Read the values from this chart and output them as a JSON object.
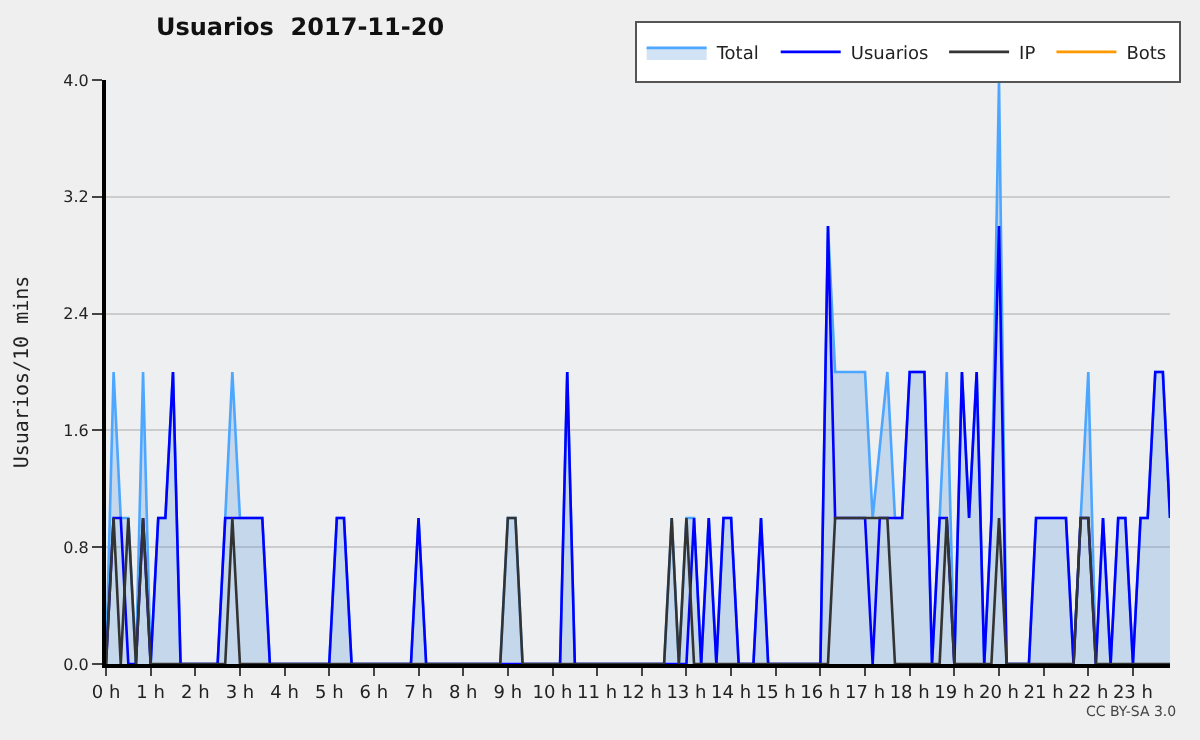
{
  "chart_data": {
    "type": "line",
    "title": "Usuarios  2017-11-20",
    "ylabel": "Usuarios/10 mins",
    "xlim": [
      0,
      23.83
    ],
    "xticks": [
      {
        "value": 0,
        "label": "0 h"
      },
      {
        "value": 1,
        "label": "1 h"
      },
      {
        "value": 2,
        "label": "2 h"
      },
      {
        "value": 3,
        "label": "3 h"
      },
      {
        "value": 4,
        "label": "4 h"
      },
      {
        "value": 5,
        "label": "5 h"
      },
      {
        "value": 6,
        "label": "6 h"
      },
      {
        "value": 7,
        "label": "7 h"
      },
      {
        "value": 8,
        "label": "8 h"
      },
      {
        "value": 9,
        "label": "9 h"
      },
      {
        "value": 10,
        "label": "10 h"
      },
      {
        "value": 11,
        "label": "11 h"
      },
      {
        "value": 12,
        "label": "12 h"
      },
      {
        "value": 13,
        "label": "13 h"
      },
      {
        "value": 14,
        "label": "14 h"
      },
      {
        "value": 15,
        "label": "15 h"
      },
      {
        "value": 16,
        "label": "16 h"
      },
      {
        "value": 17,
        "label": "17 h"
      },
      {
        "value": 18,
        "label": "18 h"
      },
      {
        "value": 19,
        "label": "19 h"
      },
      {
        "value": 20,
        "label": "20 h"
      },
      {
        "value": 21,
        "label": "21 h"
      },
      {
        "value": 22,
        "label": "22 h"
      },
      {
        "value": 23,
        "label": "23 h"
      }
    ],
    "ylim": [
      0,
      4
    ],
    "yticks": [
      {
        "value": 0,
        "label": "0.0"
      },
      0.8,
      1.6,
      2.4,
      3.2,
      {
        "value": 4,
        "label": "4.0"
      }
    ],
    "grid": "y",
    "legend": "top right",
    "marker": "none",
    "line_style": "solid",
    "annotations": [
      "CC BY-SA 3.0"
    ],
    "series": [
      {
        "name": "Total",
        "type": "area",
        "color": "#4da6ff",
        "x": [
          0,
          0.17,
          0.33,
          0.5,
          0.67,
          0.83,
          1,
          1.17,
          1.33,
          1.5,
          1.67,
          2.5,
          2.67,
          2.83,
          3,
          3.5,
          3.67,
          5,
          5.17,
          5.33,
          5.5,
          6.83,
          7,
          7.17,
          8.83,
          9,
          9.17,
          9.33,
          10.17,
          10.33,
          10.5,
          12.5,
          12.67,
          12.83,
          13,
          13.17,
          13.33,
          13.5,
          13.67,
          13.83,
          14,
          14.17,
          14.5,
          14.67,
          14.83,
          16,
          16.17,
          16.33,
          17,
          17.17,
          17.5,
          17.67,
          17.83,
          18,
          18.33,
          18.5,
          18.67,
          18.83,
          19,
          19.17,
          19.33,
          19.5,
          19.67,
          19.83,
          20,
          20.17,
          20.67,
          20.83,
          21.5,
          21.67,
          21.83,
          22,
          22.17,
          22.33,
          22.5,
          22.67,
          22.83,
          23,
          23.17,
          23.33,
          23.5,
          23.67,
          23.83
        ],
        "values": [
          0,
          2,
          1,
          1,
          0,
          2,
          0,
          1,
          1,
          2,
          0,
          0,
          1,
          2,
          1,
          1,
          0,
          0,
          1,
          1,
          0,
          0,
          1,
          0,
          0,
          1,
          1,
          0,
          0,
          2,
          0,
          0,
          1,
          0,
          1,
          1,
          0,
          1,
          0,
          1,
          1,
          0,
          0,
          1,
          0,
          0,
          3,
          2,
          2,
          1,
          2,
          1,
          1,
          2,
          2,
          0,
          1,
          2,
          0,
          2,
          1,
          2,
          0,
          1,
          4,
          0,
          0,
          1,
          1,
          0,
          1,
          2,
          0,
          1,
          0,
          1,
          1,
          0,
          1,
          1,
          2,
          2,
          1
        ]
      },
      {
        "name": "Usuarios",
        "color": "#0000ff",
        "x": [
          0,
          0.17,
          0.33,
          0.5,
          0.67,
          0.83,
          1,
          1.17,
          1.33,
          1.5,
          1.67,
          2.5,
          2.67,
          3.5,
          3.67,
          5,
          5.17,
          5.33,
          5.5,
          6.83,
          7,
          7.17,
          10.17,
          10.33,
          10.5,
          13,
          13.17,
          13.33,
          13.5,
          13.67,
          13.83,
          14,
          14.17,
          14.5,
          14.67,
          14.83,
          16,
          16.17,
          16.33,
          17,
          17.17,
          17.33,
          17.83,
          18,
          18.33,
          18.5,
          18.67,
          18.83,
          19,
          19.17,
          19.33,
          19.5,
          19.67,
          19.83,
          20,
          20.17,
          20.67,
          20.83,
          21.5,
          21.67,
          21.83,
          22,
          22.17,
          22.33,
          22.5,
          22.67,
          22.83,
          23,
          23.17,
          23.33,
          23.5,
          23.67,
          23.83
        ],
        "values": [
          0,
          1,
          1,
          0,
          0,
          1,
          0,
          1,
          1,
          2,
          0,
          0,
          1,
          1,
          0,
          0,
          1,
          1,
          0,
          0,
          1,
          0,
          0,
          2,
          0,
          0,
          1,
          0,
          1,
          0,
          1,
          1,
          0,
          0,
          1,
          0,
          0,
          3,
          1,
          1,
          0,
          1,
          1,
          2,
          2,
          0,
          1,
          1,
          0,
          2,
          1,
          2,
          0,
          1,
          3,
          0,
          0,
          1,
          1,
          0,
          1,
          1,
          0,
          1,
          0,
          1,
          1,
          0,
          1,
          1,
          2,
          2,
          1
        ]
      },
      {
        "name": "IP",
        "color": "#333333",
        "x": [
          0,
          0.17,
          0.33,
          0.5,
          0.67,
          0.83,
          1,
          2.67,
          2.83,
          3,
          8.83,
          9,
          9.17,
          9.33,
          12.5,
          12.67,
          12.83,
          13,
          13.17,
          16.17,
          16.33,
          17.5,
          17.67,
          18.67,
          18.83,
          19,
          19.83,
          20,
          20.17,
          21.67,
          21.83,
          22,
          22.17,
          23.83
        ],
        "values": [
          0,
          1,
          0,
          1,
          0,
          1,
          0,
          0,
          1,
          0,
          0,
          1,
          1,
          0,
          0,
          1,
          0,
          1,
          0,
          0,
          1,
          1,
          0,
          0,
          1,
          0,
          0,
          1,
          0,
          0,
          1,
          1,
          0,
          0
        ]
      },
      {
        "name": "Bots",
        "color": "#ff9900"
      }
    ]
  }
}
